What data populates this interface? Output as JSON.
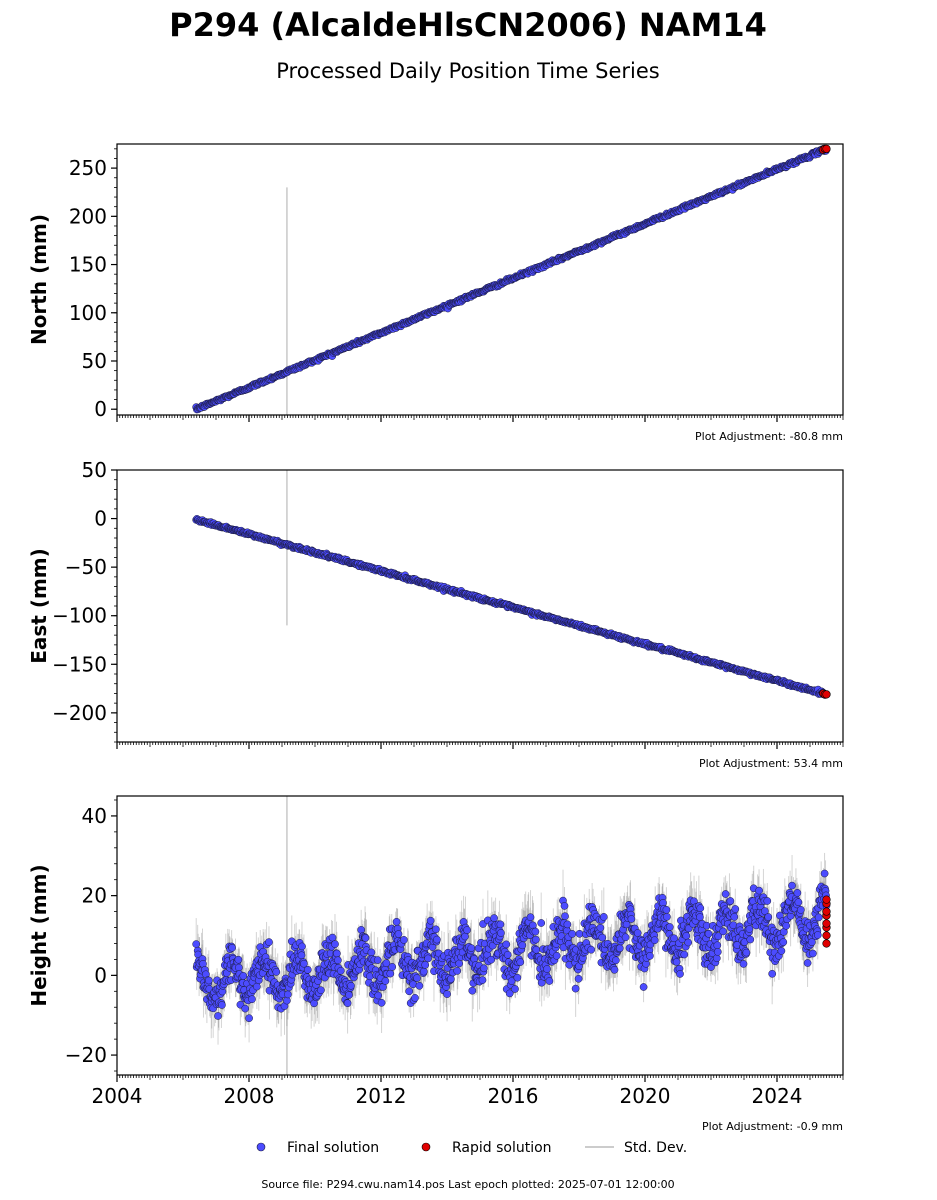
{
  "title": "P294 (AlcaldeHlsCN2006) NAM14",
  "subtitle": "Processed Daily Position Time Series",
  "footer": "Source file: P294.cwu.nam14.pos  Last epoch plotted: 2025-07-01 12:00:00",
  "legend": {
    "final_label": "Final solution",
    "rapid_label": "Rapid solution",
    "stddev_label": "Std. Dev."
  },
  "colors": {
    "final": "#4c4cff",
    "rapid": "#e00000",
    "stddev": "#bbbbbb",
    "marker_edge": "#1a1a3a"
  },
  "chart_data": [
    {
      "type": "scatter",
      "panel": "north",
      "ylabel": "North (mm)",
      "adjustment_label": "Plot Adjustment: -80.8 mm",
      "xlim": [
        2004.0,
        2026.0
      ],
      "ylim": [
        -6,
        275
      ],
      "yticks": [
        0,
        50,
        100,
        150,
        200,
        250
      ],
      "ytick_labels": [
        "0",
        "50",
        "100",
        "150",
        "200",
        "250"
      ],
      "x_start": 2006.4,
      "x_end": 2025.5,
      "y_start": 0,
      "y_end": 270,
      "noise": 1.6,
      "outlier_x": 2009.15,
      "outlier_low": -8,
      "outlier_high": 230,
      "rapid_x": [
        2025.4,
        2025.45,
        2025.5
      ],
      "rapid_y": [
        269,
        270,
        270
      ]
    },
    {
      "type": "scatter",
      "panel": "east",
      "ylabel": "East (mm)",
      "adjustment_label": "Plot Adjustment: 53.4 mm",
      "xlim": [
        2004.0,
        2026.0
      ],
      "ylim": [
        -230,
        50
      ],
      "yticks": [
        -200,
        -150,
        -100,
        -50,
        0,
        50
      ],
      "ytick_labels": [
        "−200",
        "−150",
        "−100",
        "−50",
        "0",
        "50"
      ],
      "x_start": 2006.4,
      "x_end": 2025.5,
      "y_start": -1,
      "y_end": -181,
      "noise": 1.5,
      "outlier_x": 2009.15,
      "outlier_low": -110,
      "outlier_high": 50,
      "rapid_x": [
        2025.4,
        2025.45,
        2025.5
      ],
      "rapid_y": [
        -180,
        -181,
        -181
      ]
    },
    {
      "type": "scatter",
      "panel": "height",
      "ylabel": "Height (mm)",
      "adjustment_label": "Plot Adjustment: -0.9 mm",
      "xlim": [
        2004.0,
        2026.0
      ],
      "ylim": [
        -25,
        45
      ],
      "yticks": [
        -20,
        0,
        20,
        40
      ],
      "ytick_labels": [
        "−20",
        "0",
        "20",
        "40"
      ],
      "xticks": [
        2004,
        2008,
        2012,
        2016,
        2020,
        2024
      ],
      "xtick_labels": [
        "2004",
        "2008",
        "2012",
        "2016",
        "2020",
        "2024"
      ],
      "x_start": 2006.4,
      "x_end": 2025.5,
      "y_start": -2,
      "y_end": 14,
      "noise": 5.5,
      "seasonal_amp": 5,
      "outlier_x": 2009.15,
      "outlier_low": -25,
      "outlier_high": 45,
      "rapid_x": [
        2025.5,
        2025.5,
        2025.5,
        2025.5,
        2025.5,
        2025.5,
        2025.5,
        2025.5
      ],
      "rapid_y": [
        8,
        10,
        12,
        13,
        15,
        16,
        18,
        19
      ]
    }
  ]
}
